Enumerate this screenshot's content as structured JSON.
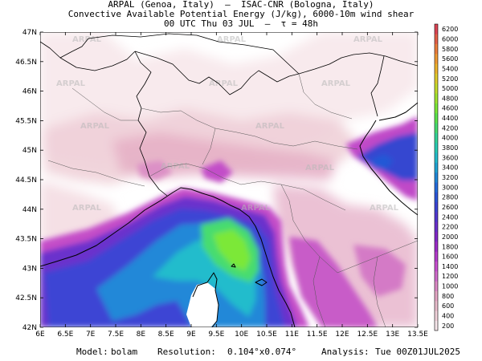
{
  "header": {
    "line1": "ARPAL (Genoa, Italy)  —  ISAC-CNR (Bologna, Italy)",
    "line2": "Convective Available Potential Energy (J/kg), 6000-10m wind shear",
    "line3": "00 UTC Thu 03 JUL  —  τ = 48h"
  },
  "watermark": "ARPAL",
  "map": {
    "lon_range": [
      6,
      13.5
    ],
    "lat_range": [
      42,
      47
    ],
    "lon_ticks": [
      "6E",
      "6.5E",
      "7E",
      "7.5E",
      "8E",
      "8.5E",
      "9E",
      "9.5E",
      "10E",
      "10.5E",
      "11E",
      "11.5E",
      "12E",
      "12.5E",
      "13E",
      "13.5E"
    ],
    "lat_ticks": [
      "42N",
      "42.5N",
      "43N",
      "43.5N",
      "44N",
      "44.5N",
      "45N",
      "45.5N",
      "46N",
      "46.5N",
      "47N"
    ]
  },
  "colorbar": {
    "labels": [
      "200",
      "400",
      "600",
      "800",
      "1000",
      "1200",
      "1400",
      "1600",
      "1800",
      "2000",
      "2200",
      "2400",
      "2600",
      "2800",
      "3000",
      "3200",
      "3400",
      "3600",
      "3800",
      "4000",
      "4200",
      "4400",
      "4600",
      "4800",
      "5000",
      "5200",
      "5400",
      "5600",
      "5800",
      "6000",
      "6200"
    ],
    "colors": [
      "#f6e6ea",
      "#f0d2da",
      "#e8bccb",
      "#e4a6c4",
      "#dc8ac6",
      "#d06ccc",
      "#c850d0",
      "#b43ccc",
      "#9c2cc8",
      "#8228c8",
      "#6a30cc",
      "#5238d0",
      "#3c44d4",
      "#2c56d8",
      "#246cdc",
      "#2088d8",
      "#20a4d4",
      "#24bccc",
      "#28ccb4",
      "#34d498",
      "#46dc70",
      "#5ce44c",
      "#7ce838",
      "#a0e430",
      "#c4dc2c",
      "#e0cc2c",
      "#eeb42c",
      "#f09a34",
      "#ec7e3c",
      "#e46048",
      "#dc4454"
    ]
  },
  "footer": {
    "model_label": "Model:",
    "model_value": "bolam",
    "resolution_label": "Resolution:",
    "resolution_value": "0.104°x0.074°",
    "analysis_label": "Analysis:",
    "analysis_value": "Tue 00Z01JUL2025"
  }
}
